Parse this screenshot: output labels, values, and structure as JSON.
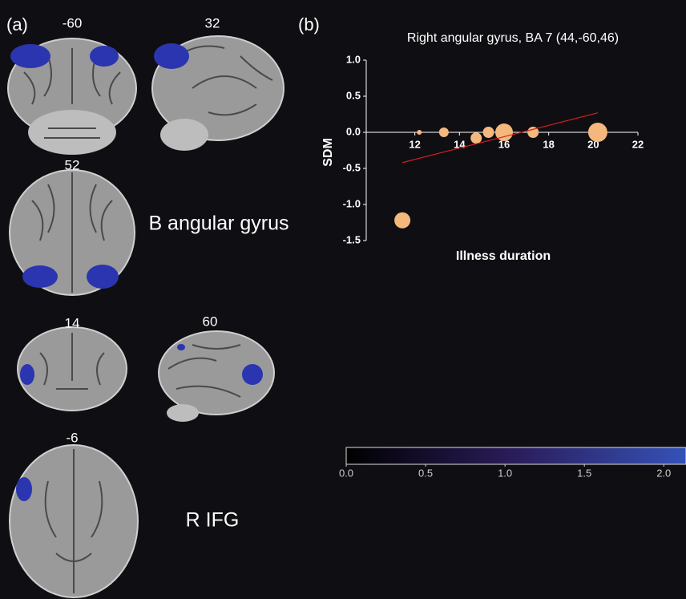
{
  "panel_labels": [
    "(a)",
    "(b)"
  ],
  "slices": [
    "-60",
    "32",
    "52",
    "14",
    "60",
    "-6"
  ],
  "regions": [
    "B angular gyrus",
    "R IFG"
  ],
  "chart_data": {
    "type": "bubble",
    "title": "Right angular gyrus, BA 7 (44,-60,46)",
    "xlabel": "Illness duration",
    "ylabel": "SDM",
    "xlim": [
      10,
      22
    ],
    "ylim": [
      -1.5,
      1
    ],
    "xticks": [
      12,
      14,
      16,
      18,
      20,
      22
    ],
    "yticks": [
      {
        "value": 1,
        "label": "1.0"
      },
      0.5,
      {
        "value": 0,
        "label": "0.0"
      },
      -0.5,
      {
        "value": -1,
        "label": "-1.0"
      },
      -1.5
    ],
    "color": "#f4b87c",
    "x": [
      11.44,
      12.2,
      13.3,
      14.75,
      15.3,
      16.0,
      17.3,
      20.2
    ],
    "values": [
      -1.22,
      0,
      0,
      -0.08,
      0,
      0,
      0,
      0
    ],
    "sizes": [
      10,
      3,
      6,
      7,
      7,
      11,
      7,
      12
    ],
    "fit": {
      "color": "#d42020",
      "x": [
        11.44,
        20.2
      ],
      "values": [
        -0.42,
        0.27
      ]
    },
    "colorbar": {
      "lim": [
        0,
        2.14
      ],
      "ticks": [
        {
          "value": 0,
          "label": "0.0"
        },
        0.5,
        {
          "value": 1,
          "label": "1.0"
        },
        1.5,
        {
          "value": 2,
          "label": "2.0"
        }
      ],
      "colors": [
        "#000000",
        "#2b1d5c",
        "#3552b8"
      ]
    }
  }
}
